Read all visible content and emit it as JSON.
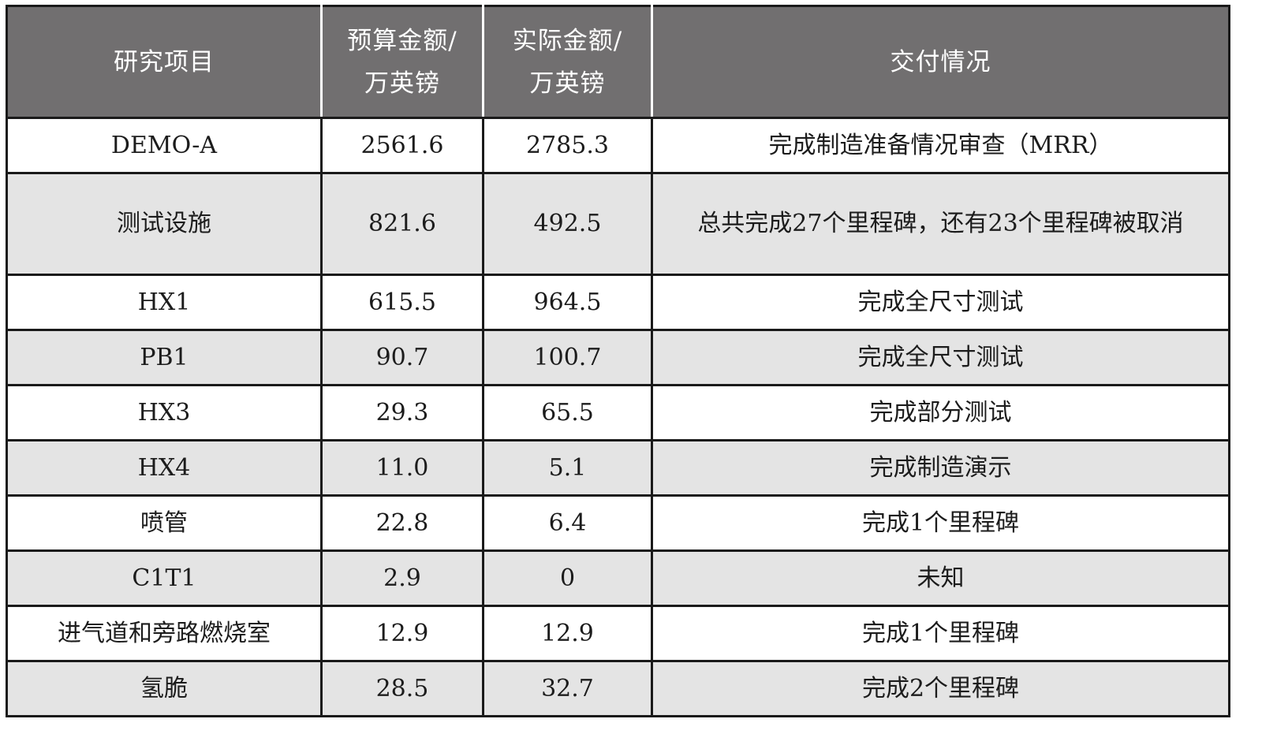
{
  "table": {
    "headers": {
      "project": "研究项目",
      "budget_line1": "预算金额/",
      "budget_line2": "万英镑",
      "actual_line1": "实际金额/",
      "actual_line2": "万英镑",
      "delivery": "交付情况"
    },
    "rows": [
      {
        "project": "DEMO-A",
        "budget": "2561.6",
        "actual": "2785.3",
        "delivery": "完成制造准备情况审查（MRR）"
      },
      {
        "project": "测试设施",
        "budget": "821.6",
        "actual": "492.5",
        "delivery": "总共完成27个里程碑，还有23个里程碑被取消"
      },
      {
        "project": "HX1",
        "budget": "615.5",
        "actual": "964.5",
        "delivery": "完成全尺寸测试"
      },
      {
        "project": "PB1",
        "budget": "90.7",
        "actual": "100.7",
        "delivery": "完成全尺寸测试"
      },
      {
        "project": "HX3",
        "budget": "29.3",
        "actual": "65.5",
        "delivery": "完成部分测试"
      },
      {
        "project": "HX4",
        "budget": "11.0",
        "actual": "5.1",
        "delivery": "完成制造演示"
      },
      {
        "project": "喷管",
        "budget": "22.8",
        "actual": "6.4",
        "delivery": "完成1个里程碑"
      },
      {
        "project": "C1T1",
        "budget": "2.9",
        "actual": "0",
        "delivery": "未知"
      },
      {
        "project": "进气道和旁路燃烧室",
        "budget": "12.9",
        "actual": "12.9",
        "delivery": "完成1个里程碑"
      },
      {
        "project": "氢脆",
        "budget": "28.5",
        "actual": "32.7",
        "delivery": "完成2个里程碑"
      }
    ]
  },
  "colors": {
    "header_bg": "#716f70",
    "header_text": "#ffffff",
    "row_shade": "#e4e4e4",
    "border": "#1a1a1a"
  }
}
